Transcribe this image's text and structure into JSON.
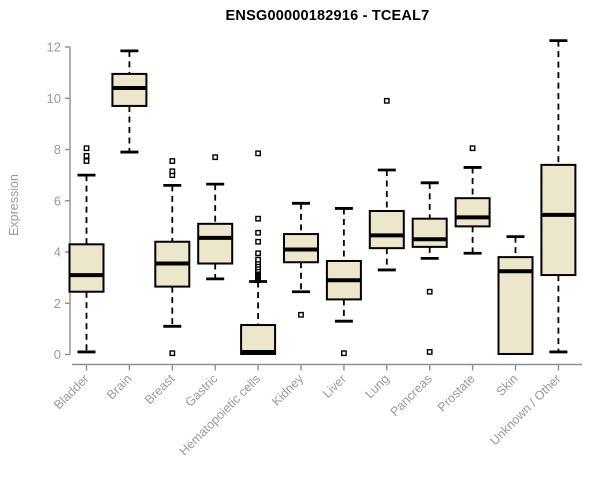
{
  "colors": {
    "box_fill": "#ECE7CB",
    "box_border": "#000000",
    "median": "#000000",
    "whisker": "#000000",
    "outlier_stroke": "#000000",
    "outlier_fill": "#ffffff",
    "axis_line": "#8f8f8f",
    "axis_text": "#9a9a9a",
    "title_text": "#000000",
    "background": "#ffffff"
  },
  "chart_data": {
    "type": "boxplot",
    "title": "ENSG00000182916 - TCEAL7",
    "xlabel": "",
    "ylabel": "Expression",
    "ylim": [
      0,
      12.3
    ],
    "yticks": [
      0,
      2,
      4,
      6,
      8,
      10,
      12
    ],
    "grid": "off",
    "categories": [
      "Bladder",
      "Brain",
      "Breast",
      "Gastric",
      "Hematopoietic cells",
      "Kidney",
      "Liver",
      "Lung",
      "Pancreas",
      "Prostate",
      "Skin",
      "Unknown / Other"
    ],
    "boxes": [
      {
        "category": "Bladder",
        "whisker_low": 0.1,
        "q1": 2.45,
        "median": 3.1,
        "q3": 4.3,
        "whisker_high": 7.0,
        "outliers": [
          7.55,
          7.75,
          8.05
        ]
      },
      {
        "category": "Brain",
        "whisker_low": 7.9,
        "q1": 9.7,
        "median": 10.4,
        "q3": 10.95,
        "whisker_high": 11.85,
        "outliers": []
      },
      {
        "category": "Breast",
        "whisker_low": 1.1,
        "q1": 2.65,
        "median": 3.55,
        "q3": 4.4,
        "whisker_high": 6.6,
        "outliers": [
          0.05,
          7.0,
          7.15,
          7.55
        ]
      },
      {
        "category": "Gastric",
        "whisker_low": 2.95,
        "q1": 3.55,
        "median": 4.55,
        "q3": 5.1,
        "whisker_high": 6.65,
        "outliers": [
          7.7
        ]
      },
      {
        "category": "Hematopoietic cells",
        "whisker_low": 0.02,
        "q1": 0.02,
        "median": 0.1,
        "q3": 1.15,
        "whisker_high": 2.85,
        "outliers": [
          2.9,
          2.95,
          3.0,
          3.05,
          3.1,
          3.15,
          3.2,
          3.25,
          3.3,
          3.4,
          3.5,
          3.6,
          3.7,
          3.95,
          4.4,
          4.75,
          5.3,
          7.85
        ]
      },
      {
        "category": "Kidney",
        "whisker_low": 2.45,
        "q1": 3.6,
        "median": 4.1,
        "q3": 4.7,
        "whisker_high": 5.9,
        "outliers": [
          1.55
        ]
      },
      {
        "category": "Liver",
        "whisker_low": 1.3,
        "q1": 2.15,
        "median": 2.9,
        "q3": 3.65,
        "whisker_high": 5.7,
        "outliers": [
          0.05
        ]
      },
      {
        "category": "Lung",
        "whisker_low": 3.3,
        "q1": 4.15,
        "median": 4.65,
        "q3": 5.6,
        "whisker_high": 7.2,
        "outliers": [
          9.9
        ]
      },
      {
        "category": "Pancreas",
        "whisker_low": 3.75,
        "q1": 4.2,
        "median": 4.5,
        "q3": 5.3,
        "whisker_high": 6.7,
        "outliers": [
          0.1,
          2.45
        ]
      },
      {
        "category": "Prostate",
        "whisker_low": 3.95,
        "q1": 5.0,
        "median": 5.35,
        "q3": 6.1,
        "whisker_high": 7.3,
        "outliers": [
          8.05
        ]
      },
      {
        "category": "Skin",
        "whisker_low": 0.02,
        "q1": 0.02,
        "median": 3.25,
        "q3": 3.8,
        "whisker_high": 4.6,
        "outliers": []
      },
      {
        "category": "Unknown / Other",
        "whisker_low": 0.1,
        "q1": 3.1,
        "median": 5.45,
        "q3": 7.4,
        "whisker_high": 12.25,
        "outliers": []
      }
    ]
  }
}
